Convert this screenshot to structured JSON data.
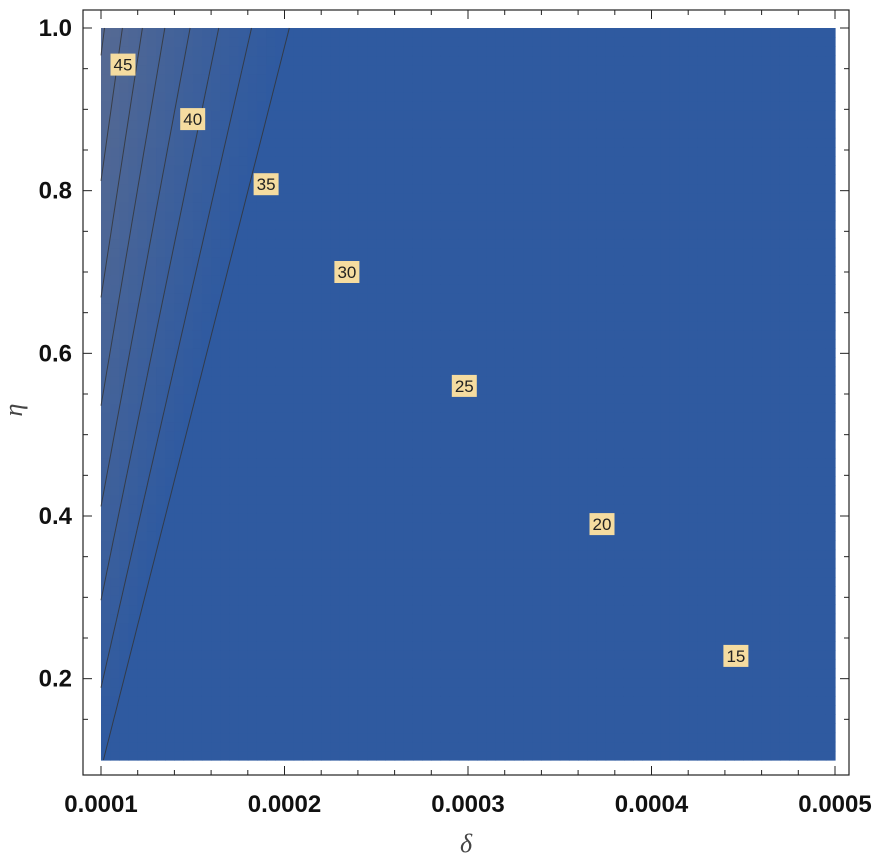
{
  "chart_data": {
    "type": "contour",
    "title": "",
    "xlabel": "δ",
    "ylabel": "η",
    "xlim": [
      0.0001,
      0.0005
    ],
    "ylim": [
      0.1,
      1.0
    ],
    "x_ticks": [
      {
        "value": 0.0001,
        "label": "0.0001"
      },
      {
        "value": 0.0002,
        "label": "0.0002"
      },
      {
        "value": 0.0003,
        "label": "0.0003"
      },
      {
        "value": 0.0004,
        "label": "0.0004"
      },
      {
        "value": 0.0005,
        "label": "0.0005"
      }
    ],
    "y_ticks": [
      {
        "value": 0.2,
        "label": "0.2"
      },
      {
        "value": 0.4,
        "label": "0.4"
      },
      {
        "value": 0.6,
        "label": "0.6"
      },
      {
        "value": 0.8,
        "label": "0.8"
      },
      {
        "value": 1.0,
        "label": "1.0"
      }
    ],
    "contour_levels": [
      11,
      12,
      13,
      14,
      15,
      16,
      17,
      18,
      19,
      20,
      21,
      22,
      23,
      24,
      25,
      26,
      27,
      28,
      29,
      30,
      31,
      32,
      33,
      34,
      35,
      36,
      37,
      38,
      39,
      40,
      41,
      42,
      43,
      44,
      45,
      46,
      47
    ],
    "contour_labels": [
      {
        "level": 45,
        "text": "45",
        "x": 0.000112,
        "y": 0.955
      },
      {
        "level": 40,
        "text": "40",
        "x": 0.00015,
        "y": 0.888
      },
      {
        "level": 35,
        "text": "35",
        "x": 0.00019,
        "y": 0.808
      },
      {
        "level": 30,
        "text": "30",
        "x": 0.000234,
        "y": 0.7
      },
      {
        "level": 25,
        "text": "25",
        "x": 0.000298,
        "y": 0.56
      },
      {
        "level": 20,
        "text": "20",
        "x": 0.000373,
        "y": 0.39
      },
      {
        "level": 15,
        "text": "15",
        "x": 0.000446,
        "y": 0.228
      }
    ],
    "colors": {
      "high": "#f7dfa0",
      "mid_high": "#e4a04c",
      "mid": "#8c8080",
      "low": "#2f5aa0",
      "contour_line": "#333333",
      "label_bg": "#f5dca0"
    },
    "grid": false
  }
}
